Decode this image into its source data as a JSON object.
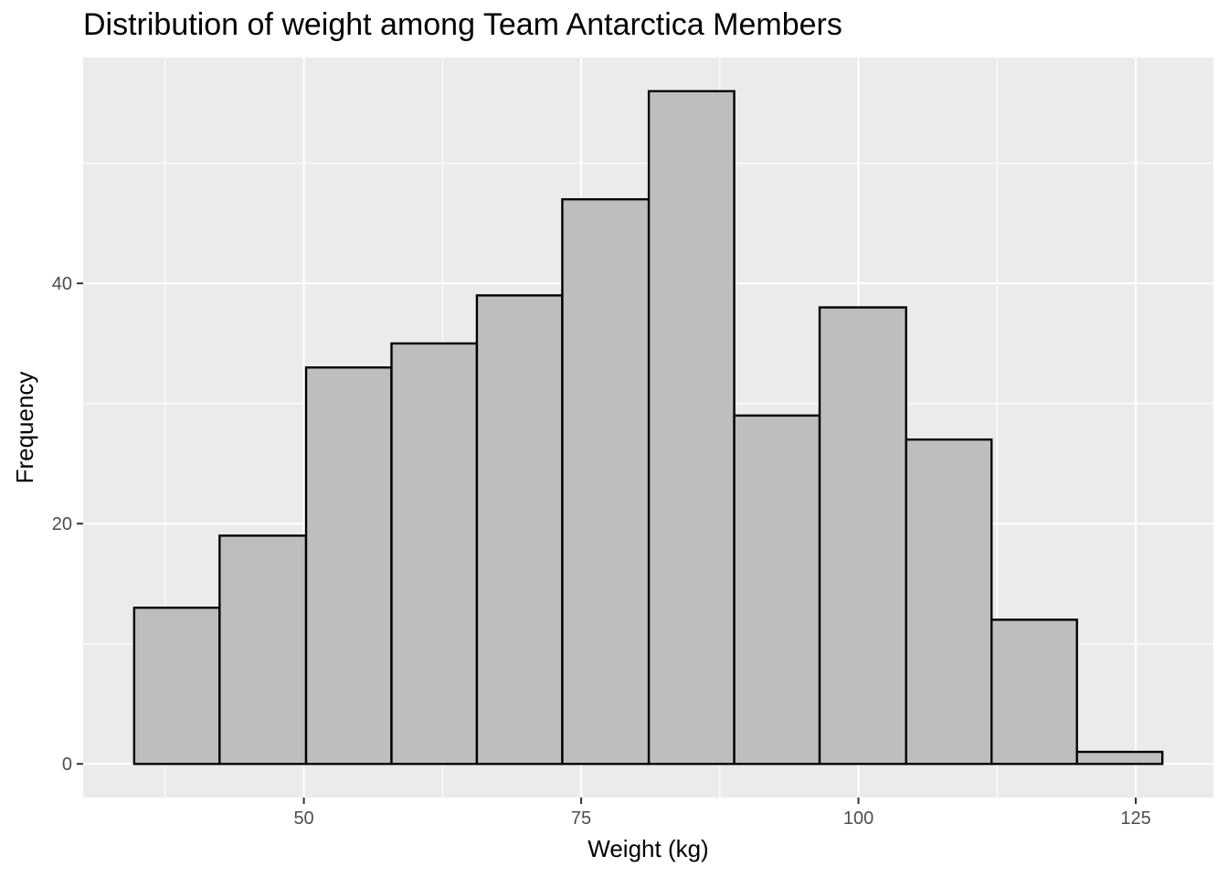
{
  "chart_data": {
    "type": "bar",
    "title": "Distribution of weight among Team Antarctica Members",
    "xlabel": "Weight (kg)",
    "ylabel": "Frequency",
    "bins": [
      {
        "x0": 34.7,
        "x1": 42.4,
        "count": 13
      },
      {
        "x0": 42.4,
        "x1": 50.2,
        "count": 19
      },
      {
        "x0": 50.2,
        "x1": 57.9,
        "count": 33
      },
      {
        "x0": 57.9,
        "x1": 65.6,
        "count": 35
      },
      {
        "x0": 65.6,
        "x1": 73.3,
        "count": 39
      },
      {
        "x0": 73.3,
        "x1": 81.1,
        "count": 47
      },
      {
        "x0": 81.1,
        "x1": 88.8,
        "count": 56
      },
      {
        "x0": 88.8,
        "x1": 96.5,
        "count": 29
      },
      {
        "x0": 96.5,
        "x1": 104.3,
        "count": 38
      },
      {
        "x0": 104.3,
        "x1": 112.0,
        "count": 27
      },
      {
        "x0": 112.0,
        "x1": 119.7,
        "count": 12
      },
      {
        "x0": 119.7,
        "x1": 127.4,
        "count": 1
      }
    ],
    "xlim": [
      30.1,
      132.0
    ],
    "ylim": [
      -2.8,
      58.8
    ],
    "x_ticks": [
      50,
      75,
      100,
      125
    ],
    "x_tick_labels": [
      "50",
      "75",
      "100",
      "125"
    ],
    "x_minor_ticks": [
      37.5,
      62.5,
      87.5,
      112.5
    ],
    "y_ticks": [
      0,
      20,
      40
    ],
    "y_tick_labels": [
      "0",
      "20",
      "40"
    ],
    "y_minor_ticks": [
      10,
      30,
      50
    ],
    "grid": true,
    "colors": {
      "panel_background": "#EBEBEB",
      "grid_line": "#FFFFFF",
      "bar_fill": "#BEBEBE",
      "bar_outline": "#000000",
      "tick_label": "#4D4D4D",
      "tick_mark": "#333333"
    }
  }
}
